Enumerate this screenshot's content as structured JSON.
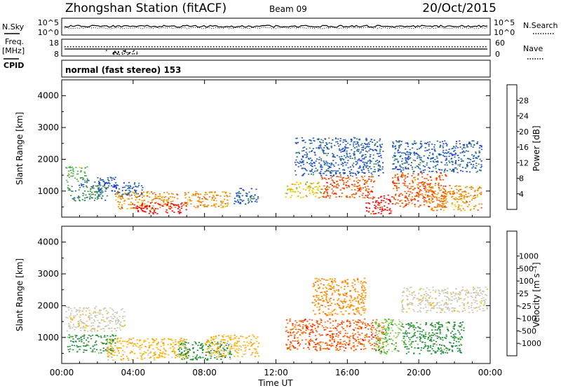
{
  "header": {
    "station": "Zhongshan Station (fitACF)",
    "beam": "Beam 09",
    "date": "20/Oct/2015"
  },
  "params": {
    "nsky_label": "N.Sky",
    "nsky_top": "10^5",
    "nsky_bottom": "10^0",
    "nsearch_label": "N.Search",
    "nsearch_top": "10^5",
    "nsearch_bottom": "10^0",
    "freq_label": "Freq.",
    "freq_unit": "[MHz]",
    "freq_top": "18",
    "freq_bottom": "8",
    "nave_label": "Nave",
    "nave_top": "60",
    "nave_bottom": "0",
    "cpid_label": "CPID",
    "cpid_text": "normal (fast stereo) 153"
  },
  "colors": {
    "power": [
      "#2020ff",
      "#2060b0",
      "#3c8c50",
      "#50b450",
      "#e6c800",
      "#f08c00",
      "#f05000",
      "#ff0000"
    ],
    "velocity": [
      "#ff0000",
      "#ff5a00",
      "#ff8c00",
      "#ffb400",
      "#c8c8b4",
      "#c8c8b4",
      "#78c83c",
      "#1e8c32",
      "#2d825a",
      "#1e3cb4"
    ]
  },
  "chart_data": [
    {
      "type": "heatmap",
      "panel": "power",
      "ylabel": "Slant Range [km]",
      "xlabel": "",
      "x_ticks": [
        "00:00",
        "04:00",
        "08:00",
        "12:00",
        "16:00",
        "20:00",
        "00:00"
      ],
      "xlim_hours": [
        0,
        24
      ],
      "ylim": [
        180,
        4500
      ],
      "y_ticks": [
        1000,
        2000,
        3000,
        4000
      ],
      "colorbar_label": "Power [dB]",
      "colorbar_ticks": [
        "4",
        "8",
        "12",
        "16",
        "20",
        "24",
        "28"
      ],
      "patches": [
        {
          "t": [
            0.2,
            1.4
          ],
          "r": [
            1300,
            1800
          ],
          "level": 3
        },
        {
          "t": [
            1.0,
            3.0
          ],
          "r": [
            1150,
            1450
          ],
          "level": 1
        },
        {
          "t": [
            0.3,
            2.5
          ],
          "r": [
            700,
            1200
          ],
          "level": 2
        },
        {
          "t": [
            2.0,
            4.5
          ],
          "r": [
            850,
            1300
          ],
          "level": 1
        },
        {
          "t": [
            3.0,
            6.5
          ],
          "r": [
            450,
            1000
          ],
          "level": 5
        },
        {
          "t": [
            4.0,
            7.0
          ],
          "r": [
            300,
            650
          ],
          "level": 7
        },
        {
          "t": [
            6.8,
            9.5
          ],
          "r": [
            500,
            1000
          ],
          "level": 5
        },
        {
          "t": [
            9.5,
            11.0
          ],
          "r": [
            600,
            1100
          ],
          "level": 1
        },
        {
          "t": [
            12.5,
            14.5
          ],
          "r": [
            800,
            1300
          ],
          "level": 4
        },
        {
          "t": [
            14.5,
            17.5
          ],
          "r": [
            800,
            1500
          ],
          "level": 6
        },
        {
          "t": [
            17.0,
            18.5
          ],
          "r": [
            300,
            900
          ],
          "level": 7
        },
        {
          "t": [
            18.5,
            21.5
          ],
          "r": [
            500,
            1600
          ],
          "level": 6
        },
        {
          "t": [
            20.5,
            23.5
          ],
          "r": [
            400,
            1200
          ],
          "level": 5
        },
        {
          "t": [
            13.0,
            18.0
          ],
          "r": [
            1500,
            2700
          ],
          "level": 1
        },
        {
          "t": [
            18.5,
            23.5
          ],
          "r": [
            1600,
            2600
          ],
          "level": 1
        }
      ]
    },
    {
      "type": "heatmap",
      "panel": "velocity",
      "ylabel": "Slant Range [km]",
      "xlabel": "Time UT",
      "x_ticks": [
        "00:00",
        "04:00",
        "08:00",
        "12:00",
        "16:00",
        "20:00",
        "00:00"
      ],
      "xlim_hours": [
        0,
        24
      ],
      "ylim": [
        180,
        4500
      ],
      "y_ticks": [
        1000,
        2000,
        3000,
        4000
      ],
      "colorbar_label": "Velocity [m s⁻¹]",
      "colorbar_ticks": [
        "-1000",
        "-500",
        "-100",
        "-25",
        "25",
        "100",
        "500",
        "1000"
      ],
      "patches": [
        {
          "t": [
            0.2,
            3.5
          ],
          "r": [
            1200,
            2000
          ],
          "level": 4
        },
        {
          "t": [
            0.3,
            3.0
          ],
          "r": [
            500,
            1100
          ],
          "level": 7
        },
        {
          "t": [
            2.5,
            7.0
          ],
          "r": [
            300,
            1000
          ],
          "level": 3
        },
        {
          "t": [
            6.5,
            9.5
          ],
          "r": [
            300,
            900
          ],
          "level": 7
        },
        {
          "t": [
            8.0,
            11.0
          ],
          "r": [
            400,
            1100
          ],
          "level": 3
        },
        {
          "t": [
            12.5,
            18.0
          ],
          "r": [
            600,
            1600
          ],
          "level": 1
        },
        {
          "t": [
            14.0,
            17.0
          ],
          "r": [
            1700,
            2900
          ],
          "level": 2
        },
        {
          "t": [
            17.5,
            19.0
          ],
          "r": [
            500,
            1600
          ],
          "level": 6
        },
        {
          "t": [
            19.0,
            22.5
          ],
          "r": [
            500,
            1500
          ],
          "level": 7
        },
        {
          "t": [
            19.0,
            23.8
          ],
          "r": [
            1800,
            2600
          ],
          "level": 4
        }
      ]
    }
  ]
}
